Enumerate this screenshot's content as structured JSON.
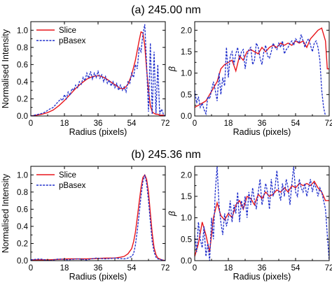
{
  "chart_data": [
    {
      "type": "line",
      "panel_title": "(a) 245.00 nm",
      "xlabel": "Radius (pixels)",
      "ylabel": "Normalised Intensity",
      "xlim": [
        0,
        72
      ],
      "ylim": [
        0,
        1.1
      ],
      "xticks": [
        "0",
        "18",
        "36",
        "54",
        "72"
      ],
      "yticks": [
        "0.0",
        "0.2",
        "0.4",
        "0.6",
        "0.8",
        "1.0"
      ],
      "legend": "top-left",
      "series": [
        {
          "name": "Slice",
          "color": "#e8151b",
          "style": "solid",
          "x": [
            0,
            3,
            6,
            9,
            12,
            15,
            18,
            21,
            24,
            27,
            30,
            33,
            36,
            38,
            40,
            42,
            44,
            46,
            48,
            50,
            52,
            54,
            56,
            58,
            59,
            60,
            61,
            62,
            63,
            64,
            65,
            66,
            67,
            68,
            69,
            70,
            71,
            72
          ],
          "y": [
            0,
            0.01,
            0.02,
            0.04,
            0.07,
            0.12,
            0.18,
            0.25,
            0.32,
            0.38,
            0.43,
            0.46,
            0.47,
            0.46,
            0.44,
            0.41,
            0.38,
            0.35,
            0.32,
            0.32,
            0.37,
            0.48,
            0.65,
            0.88,
            0.98,
            0.97,
            0.82,
            0.55,
            0.3,
            0.12,
            0.05,
            0.03,
            0.02,
            0.02,
            0.01,
            0.01,
            0.01,
            0
          ]
        },
        {
          "name": "pBasex",
          "color": "#1f2fcc",
          "style": "dashed",
          "x": [
            0,
            2,
            4,
            6,
            8,
            10,
            12,
            14,
            16,
            17,
            18,
            19,
            20,
            21,
            22,
            23,
            24,
            25,
            26,
            27,
            28,
            29,
            30,
            31,
            32,
            33,
            34,
            35,
            36,
            37,
            38,
            39,
            40,
            41,
            42,
            43,
            44,
            45,
            46,
            47,
            48,
            49,
            50,
            51,
            52,
            53,
            54,
            55,
            56,
            57,
            58,
            59,
            60,
            61,
            62,
            63,
            64,
            65,
            66,
            67,
            68,
            69,
            70,
            71,
            72
          ],
          "y": [
            0,
            0.01,
            0.02,
            0.03,
            0.05,
            0.08,
            0.1,
            0.15,
            0.2,
            0.18,
            0.25,
            0.2,
            0.28,
            0.24,
            0.32,
            0.3,
            0.36,
            0.33,
            0.4,
            0.37,
            0.45,
            0.41,
            0.5,
            0.44,
            0.52,
            0.43,
            0.5,
            0.45,
            0.52,
            0.44,
            0.48,
            0.4,
            0.46,
            0.38,
            0.42,
            0.35,
            0.4,
            0.33,
            0.38,
            0.3,
            0.36,
            0.3,
            0.34,
            0.28,
            0.4,
            0.38,
            0.5,
            0.45,
            0.6,
            0.55,
            0.8,
            0.75,
            0.95,
            1.07,
            0.6,
            0.05,
            0.85,
            0.02,
            0.75,
            0.03,
            0.6,
            0.02,
            0.08,
            0.02,
            0
          ]
        }
      ]
    },
    {
      "type": "line",
      "panel_title": "",
      "xlabel": "Radius (pixels)",
      "ylabel": "β",
      "xlim": [
        0,
        72
      ],
      "ylim": [
        0,
        2.2
      ],
      "xticks": [
        "0",
        "18",
        "36",
        "54",
        "72"
      ],
      "yticks": [
        "0.0",
        "0.5",
        "1.0",
        "1.5",
        "2.0"
      ],
      "series": [
        {
          "name": "Slice",
          "color": "#e8151b",
          "style": "solid",
          "x": [
            0,
            2,
            4,
            6,
            8,
            10,
            12,
            14,
            16,
            18,
            20,
            22,
            24,
            26,
            28,
            30,
            32,
            34,
            36,
            38,
            40,
            42,
            44,
            46,
            48,
            50,
            52,
            54,
            56,
            58,
            60,
            62,
            64,
            66,
            68,
            70,
            71,
            72
          ],
          "y": [
            0.2,
            0.25,
            0.3,
            0.35,
            0.5,
            0.65,
            0.8,
            1.1,
            1.2,
            1.25,
            1.3,
            1.05,
            1.4,
            1.3,
            1.5,
            1.55,
            1.5,
            1.45,
            1.6,
            1.5,
            1.6,
            1.65,
            1.6,
            1.7,
            1.65,
            1.7,
            1.65,
            1.75,
            1.7,
            1.75,
            1.6,
            1.8,
            1.9,
            2.0,
            2.05,
            1.75,
            1.1,
            1.1
          ]
        },
        {
          "name": "pBasex",
          "color": "#1f2fcc",
          "style": "dashed",
          "x": [
            0,
            1,
            2,
            3,
            4,
            5,
            6,
            7,
            8,
            9,
            10,
            11,
            12,
            13,
            14,
            15,
            16,
            17,
            18,
            19,
            20,
            21,
            22,
            23,
            24,
            25,
            26,
            27,
            28,
            29,
            30,
            31,
            32,
            33,
            34,
            35,
            36,
            37,
            38,
            39,
            40,
            41,
            42,
            43,
            44,
            45,
            46,
            47,
            48,
            49,
            50,
            51,
            52,
            53,
            54,
            55,
            56,
            57,
            58,
            59,
            60,
            61,
            62,
            63,
            64,
            65,
            66,
            67,
            68,
            69,
            70
          ],
          "y": [
            0.6,
            0.3,
            0.45,
            0.2,
            0.3,
            0.15,
            0.05,
            0.45,
            0.4,
            0.6,
            0.8,
            0.6,
            0.35,
            1.0,
            0.5,
            0.9,
            0.7,
            1.6,
            0.9,
            1.4,
            1.5,
            1.2,
            1.45,
            1.6,
            1.3,
            1.5,
            1.55,
            1.1,
            1.4,
            1.55,
            1.6,
            1.2,
            1.3,
            1.7,
            1.6,
            1.35,
            1.2,
            1.5,
            1.65,
            1.4,
            1.35,
            1.5,
            1.7,
            1.6,
            1.55,
            1.7,
            1.6,
            1.75,
            1.45,
            1.55,
            1.6,
            1.7,
            1.75,
            1.65,
            1.8,
            1.75,
            1.7,
            1.9,
            1.75,
            1.6,
            1.75,
            1.8,
            1.65,
            1.5,
            1.7,
            1.75,
            1.6,
            1.3,
            0.6,
            0.2,
            0
          ]
        }
      ]
    },
    {
      "type": "line",
      "panel_title": "(b) 245.36 nm",
      "xlabel": "Radius (pixels)",
      "ylabel": "Normalised Intensity",
      "xlim": [
        0,
        72
      ],
      "ylim": [
        0,
        1.1
      ],
      "xticks": [
        "0",
        "18",
        "36",
        "54",
        "72"
      ],
      "yticks": [
        "0.0",
        "0.2",
        "0.4",
        "0.6",
        "0.8",
        "1.0"
      ],
      "legend": "top-left",
      "series": [
        {
          "name": "Slice",
          "color": "#e8151b",
          "style": "solid",
          "x": [
            0,
            10,
            20,
            30,
            40,
            45,
            48,
            50,
            52,
            54,
            55,
            56,
            57,
            58,
            59,
            60,
            61,
            62,
            63,
            64,
            65,
            66,
            67,
            68,
            70,
            72
          ],
          "y": [
            0.01,
            0.01,
            0.02,
            0.02,
            0.03,
            0.03,
            0.04,
            0.05,
            0.08,
            0.14,
            0.22,
            0.33,
            0.5,
            0.68,
            0.85,
            0.97,
            1.0,
            0.95,
            0.8,
            0.55,
            0.32,
            0.15,
            0.07,
            0.03,
            0.01,
            0
          ]
        },
        {
          "name": "pBasex",
          "color": "#1f2fcc",
          "style": "dashed",
          "x": [
            0,
            5,
            10,
            15,
            20,
            25,
            30,
            35,
            40,
            45,
            50,
            52,
            54,
            55,
            56,
            57,
            58,
            59,
            60,
            61,
            62,
            63,
            64,
            65,
            66,
            67,
            68,
            70,
            72
          ],
          "y": [
            0.01,
            0.02,
            0.0,
            0.02,
            0.01,
            0.02,
            0.01,
            0.03,
            0.02,
            0.03,
            0.02,
            0.03,
            0.05,
            0.08,
            0.18,
            0.35,
            0.55,
            0.75,
            0.92,
            1.0,
            0.9,
            0.7,
            0.45,
            0.22,
            0.1,
            0.04,
            0.02,
            0.01,
            0
          ]
        }
      ]
    },
    {
      "type": "line",
      "panel_title": "",
      "xlabel": "Radius (pixels)",
      "ylabel": "β",
      "xlim": [
        0,
        72
      ],
      "ylim": [
        0,
        2.2
      ],
      "xticks": [
        "0",
        "18",
        "36",
        "54",
        "72"
      ],
      "yticks": [
        "0.0",
        "0.5",
        "1.0",
        "1.5",
        "2.0"
      ],
      "series": [
        {
          "name": "Slice",
          "color": "#e8151b",
          "style": "solid",
          "x": [
            0,
            2,
            4,
            6,
            8,
            10,
            12,
            14,
            16,
            18,
            20,
            22,
            24,
            26,
            28,
            30,
            32,
            34,
            36,
            38,
            40,
            42,
            44,
            46,
            48,
            50,
            52,
            54,
            56,
            58,
            60,
            62,
            64,
            66,
            68,
            70,
            72
          ],
          "y": [
            0.1,
            0.4,
            0.9,
            0.6,
            0.2,
            1.0,
            1.35,
            1.05,
            0.95,
            1.1,
            1.0,
            1.3,
            1.4,
            1.2,
            1.5,
            1.45,
            1.3,
            1.55,
            1.45,
            1.6,
            1.5,
            1.55,
            1.65,
            1.6,
            1.7,
            1.6,
            1.75,
            1.7,
            1.8,
            1.75,
            1.8,
            1.75,
            1.85,
            1.7,
            1.6,
            1.4,
            1.4
          ]
        },
        {
          "name": "pBasex",
          "color": "#1f2fcc",
          "style": "dashed",
          "x": [
            0,
            1,
            2,
            3,
            4,
            5,
            6,
            7,
            8,
            9,
            10,
            11,
            12,
            13,
            14,
            15,
            16,
            17,
            18,
            19,
            20,
            21,
            22,
            23,
            24,
            25,
            26,
            27,
            28,
            29,
            30,
            31,
            32,
            33,
            34,
            35,
            36,
            37,
            38,
            39,
            40,
            41,
            42,
            43,
            44,
            45,
            46,
            47,
            48,
            49,
            50,
            51,
            52,
            53,
            54,
            55,
            56,
            57,
            58,
            59,
            60,
            61,
            62,
            63,
            64,
            65,
            66,
            67,
            68,
            69,
            70,
            71,
            72
          ],
          "y": [
            0.6,
            0.2,
            0.9,
            0.5,
            0.3,
            0.8,
            0.1,
            0.4,
            0.0,
            1.0,
            0.5,
            1.6,
            2.2,
            1.3,
            0.9,
            0.6,
            1.1,
            0.8,
            1.0,
            1.4,
            0.9,
            1.3,
            1.1,
            1.6,
            0.9,
            1.4,
            1.2,
            1.5,
            1.0,
            1.6,
            1.3,
            1.7,
            1.4,
            1.2,
            1.6,
            1.9,
            1.3,
            1.5,
            1.8,
            1.6,
            1.2,
            1.9,
            1.5,
            1.7,
            2.1,
            1.6,
            1.4,
            1.8,
            1.5,
            1.9,
            1.7,
            1.3,
            1.8,
            2.2,
            1.6,
            1.5,
            1.9,
            1.7,
            1.6,
            1.8,
            1.5,
            1.7,
            1.9,
            1.6,
            1.8,
            1.7,
            1.5,
            1.7,
            1.6,
            1.4,
            1.2,
            0.6,
            0
          ]
        }
      ]
    }
  ]
}
